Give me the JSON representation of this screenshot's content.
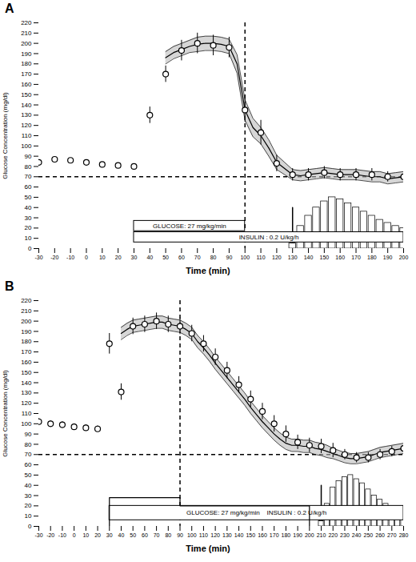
{
  "chart_data": [
    {
      "type": "line",
      "title": "A",
      "grid": false,
      "xlabel": "Time (min)",
      "ylabel": "Glucose Concentration (mg/dl)",
      "xlim": [
        -30,
        200
      ],
      "ylim": [
        0,
        220
      ],
      "xticks": [
        -30,
        -20,
        -10,
        0,
        10,
        20,
        30,
        40,
        50,
        60,
        70,
        80,
        90,
        100,
        110,
        120,
        130,
        140,
        150,
        160,
        170,
        180,
        190,
        200
      ],
      "yticks": [
        0,
        10,
        20,
        30,
        40,
        50,
        60,
        70,
        80,
        90,
        100,
        110,
        120,
        130,
        140,
        150,
        160,
        170,
        180,
        190,
        200,
        210,
        220
      ],
      "blood_glucose": {
        "x": [
          -30,
          -20,
          -10,
          0,
          10,
          20,
          30,
          40,
          50,
          60,
          70,
          80,
          90,
          100,
          110,
          120,
          130,
          140,
          150,
          160,
          170,
          180,
          190,
          200
        ],
        "values": [
          84,
          87,
          86,
          84,
          82,
          81,
          80,
          130,
          170,
          193,
          200,
          198,
          196,
          135,
          113,
          83,
          72,
          72,
          74,
          72,
          72,
          72,
          70,
          70
        ],
        "errors": [
          2,
          2,
          2,
          2,
          2,
          2,
          2,
          8,
          8,
          10,
          10,
          10,
          10,
          12,
          12,
          8,
          6,
          6,
          6,
          6,
          6,
          6,
          5,
          5
        ]
      },
      "sensor": {
        "x": [
          50,
          55,
          60,
          65,
          70,
          75,
          80,
          85,
          90,
          95,
          100,
          105,
          110,
          115,
          120,
          125,
          130,
          135,
          140,
          145,
          150,
          155,
          160,
          165,
          170,
          175,
          180,
          185,
          190,
          195,
          200
        ],
        "values": [
          186,
          191,
          194,
          197,
          199,
          200,
          200,
          199,
          197,
          180,
          135,
          118,
          110,
          98,
          84,
          78,
          72,
          71,
          72,
          73,
          74,
          73,
          72,
          72,
          72,
          71,
          70,
          70,
          68,
          69,
          70
        ],
        "errors": [
          6,
          6,
          6,
          6,
          7,
          7,
          7,
          7,
          7,
          9,
          10,
          9,
          8,
          8,
          7,
          6,
          5,
          5,
          5,
          5,
          5,
          5,
          5,
          5,
          5,
          5,
          5,
          5,
          5,
          5,
          5
        ]
      },
      "bars": {
        "x": [
          130,
          135,
          140,
          145,
          150,
          155,
          160,
          165,
          170,
          175,
          180,
          185,
          190,
          195,
          200
        ],
        "values": [
          5,
          22,
          32,
          40,
          46,
          50,
          48,
          44,
          40,
          36,
          32,
          28,
          25,
          22,
          20
        ]
      },
      "hline_y": 70,
      "vline_x": 100,
      "arrow": {
        "x": 130,
        "y_start": 40,
        "y_end": 3
      },
      "annotations": [
        {
          "text": "GLUCOSE: 27 mg/kg/min",
          "x1": 30,
          "x2": 100,
          "y1": 17,
          "y2": 27
        },
        {
          "text": "INSULIN : 0.2 U/kg/h",
          "x1": 30,
          "x2": 200,
          "y1": 6,
          "y2": 16
        }
      ]
    },
    {
      "type": "line",
      "title": "B",
      "grid": false,
      "xlabel": "Time (min)",
      "ylabel": "Glucose Concentration (mg/dl)",
      "xlim": [
        -30,
        280
      ],
      "ylim": [
        0,
        220
      ],
      "xticks": [
        -30,
        -20,
        -10,
        0,
        10,
        20,
        30,
        40,
        50,
        60,
        70,
        80,
        90,
        100,
        110,
        120,
        130,
        140,
        150,
        160,
        170,
        180,
        190,
        200,
        210,
        220,
        230,
        240,
        250,
        260,
        270,
        280
      ],
      "yticks": [
        0,
        10,
        20,
        30,
        40,
        50,
        60,
        70,
        80,
        90,
        100,
        110,
        120,
        130,
        140,
        150,
        160,
        170,
        180,
        190,
        200,
        210,
        220
      ],
      "blood_glucose": {
        "x": [
          -30,
          -20,
          -10,
          0,
          10,
          20,
          30,
          40,
          50,
          60,
          70,
          80,
          90,
          100,
          110,
          120,
          130,
          140,
          150,
          160,
          170,
          180,
          190,
          200,
          210,
          220,
          230,
          240,
          250,
          260,
          270,
          280
        ],
        "values": [
          102,
          100,
          99,
          97,
          96,
          95,
          178,
          131,
          195,
          197,
          200,
          197,
          195,
          188,
          178,
          165,
          152,
          138,
          124,
          112,
          100,
          90,
          82,
          79,
          78,
          74,
          70,
          67,
          67,
          70,
          73,
          76
        ],
        "errors": [
          3,
          3,
          3,
          3,
          3,
          3,
          10,
          8,
          8,
          8,
          8,
          8,
          8,
          8,
          8,
          8,
          8,
          8,
          8,
          8,
          8,
          8,
          7,
          7,
          7,
          7,
          5,
          5,
          5,
          5,
          5,
          5
        ]
      },
      "sensor": {
        "x": [
          40,
          45,
          50,
          55,
          60,
          65,
          70,
          75,
          80,
          85,
          90,
          95,
          100,
          105,
          110,
          115,
          120,
          125,
          130,
          135,
          140,
          145,
          150,
          155,
          160,
          165,
          170,
          175,
          180,
          185,
          190,
          195,
          200,
          205,
          210,
          215,
          220,
          225,
          230,
          235,
          240,
          245,
          250,
          255,
          260,
          265,
          270,
          275,
          280
        ],
        "values": [
          188,
          192,
          195,
          196,
          197,
          198,
          199,
          199,
          197,
          196,
          195,
          192,
          188,
          180,
          174,
          167,
          159,
          152,
          145,
          138,
          131,
          124,
          116,
          109,
          102,
          96,
          90,
          85,
          81,
          79,
          79,
          78,
          78,
          76,
          75,
          73,
          71,
          69,
          67,
          66,
          66,
          67,
          68,
          70,
          72,
          73,
          74,
          75,
          76
        ],
        "errors": [
          6,
          6,
          6,
          6,
          6,
          6,
          6,
          6,
          6,
          6,
          6,
          6,
          6,
          6,
          6,
          6,
          6,
          6,
          6,
          6,
          6,
          6,
          6,
          6,
          6,
          6,
          6,
          6,
          6,
          6,
          6,
          6,
          6,
          6,
          6,
          6,
          5,
          5,
          5,
          5,
          5,
          5,
          5,
          5,
          5,
          5,
          5,
          5,
          5
        ]
      },
      "bars": {
        "x": [
          210,
          215,
          220,
          225,
          230,
          235,
          240,
          245,
          250,
          255,
          260,
          265,
          270,
          275,
          280
        ],
        "values": [
          5,
          22,
          38,
          44,
          48,
          50,
          46,
          42,
          36,
          30,
          26,
          22,
          18,
          15,
          12
        ]
      },
      "hline_y": 70,
      "vline_x": 90,
      "arrow": {
        "x": 210,
        "y_start": 40,
        "y_end": 3
      },
      "annotations": [
        {
          "text": "GLUCOSE: 27 mg/kg/min    INSULIN : 0.2 U/kg/h",
          "x1": 30,
          "x2": 280,
          "y1": 6,
          "y2": 20
        }
      ],
      "step_line": {
        "x": [
          30,
          30,
          90,
          90,
          200,
          200
        ],
        "values": [
          0,
          28,
          28,
          20,
          20,
          0
        ]
      }
    }
  ]
}
